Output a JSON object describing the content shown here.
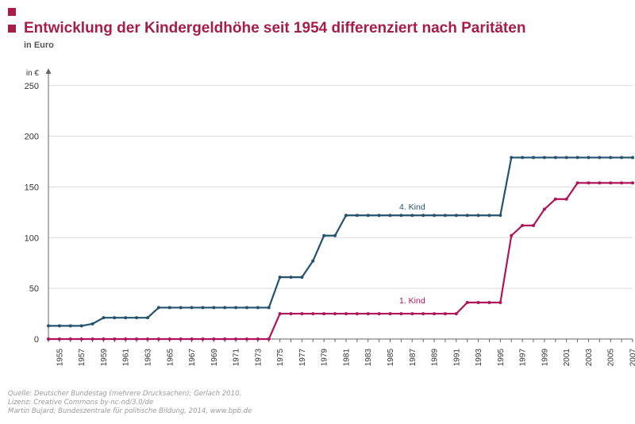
{
  "colors": {
    "accent": "#a71d47",
    "series1": "#b0145a",
    "series2": "#24536f",
    "grid": "#d9d9d9",
    "axis": "#666666",
    "source_text": "#9a9a9a"
  },
  "header": {
    "title": "Entwicklung der Kindergeldhöhe seit 1954 differenziert nach Paritäten",
    "subtitle": "in Euro"
  },
  "source": {
    "line1": "Quelle: Deutscher Bundestag (mehrere Drucksachen); Gerlach 2010.",
    "line2": "Lizenz: Creative Commons by-nc-nd/3.0/de",
    "line3": "Martin Bujard; Bundeszentrale für politische Bildung, 2014, www.bpb.de"
  },
  "chart_data": {
    "type": "line",
    "title": "Entwicklung der Kindergeldhöhe seit 1954 differenziert nach Paritäten",
    "subtitle": "in Euro",
    "ylabel": "in €",
    "xlabel": "",
    "ylim": [
      0,
      260
    ],
    "yticks": [
      0,
      50,
      100,
      150,
      200,
      250
    ],
    "xlim": [
      1954,
      2007
    ],
    "xticks": [
      1955,
      1957,
      1959,
      1961,
      1963,
      1965,
      1967,
      1969,
      1971,
      1973,
      1975,
      1977,
      1979,
      1981,
      1983,
      1985,
      1987,
      1989,
      1991,
      1993,
      1995,
      1997,
      1999,
      2001,
      2003,
      2005,
      2007
    ],
    "grid": true,
    "x": [
      1954,
      1955,
      1956,
      1957,
      1958,
      1959,
      1960,
      1961,
      1962,
      1963,
      1964,
      1965,
      1966,
      1967,
      1968,
      1969,
      1970,
      1971,
      1972,
      1973,
      1974,
      1975,
      1976,
      1977,
      1978,
      1979,
      1980,
      1981,
      1982,
      1983,
      1984,
      1985,
      1986,
      1987,
      1988,
      1989,
      1990,
      1991,
      1992,
      1993,
      1994,
      1995,
      1996,
      1997,
      1998,
      1999,
      2000,
      2001,
      2002,
      2003,
      2004,
      2005,
      2006,
      2007
    ],
    "series": [
      {
        "name": "1. Kind",
        "label": "1. Kind",
        "values": [
          0,
          0,
          0,
          0,
          0,
          0,
          0,
          0,
          0,
          0,
          0,
          0,
          0,
          0,
          0,
          0,
          0,
          0,
          0,
          0,
          0,
          25,
          25,
          25,
          25,
          25,
          25,
          25,
          25,
          25,
          25,
          25,
          25,
          25,
          25,
          25,
          25,
          25,
          36,
          36,
          36,
          36,
          102,
          112,
          112,
          128,
          138,
          138,
          154,
          154,
          154,
          154,
          154,
          154
        ]
      },
      {
        "name": "4. Kind",
        "label": "4. Kind",
        "values": [
          13,
          13,
          13,
          13,
          15,
          21,
          21,
          21,
          21,
          21,
          31,
          31,
          31,
          31,
          31,
          31,
          31,
          31,
          31,
          31,
          31,
          61,
          61,
          61,
          77,
          102,
          102,
          122,
          122,
          122,
          122,
          122,
          122,
          122,
          122,
          122,
          122,
          122,
          122,
          122,
          122,
          122,
          179,
          179,
          179,
          179,
          179,
          179,
          179,
          179,
          179,
          179,
          179,
          179
        ]
      }
    ]
  }
}
